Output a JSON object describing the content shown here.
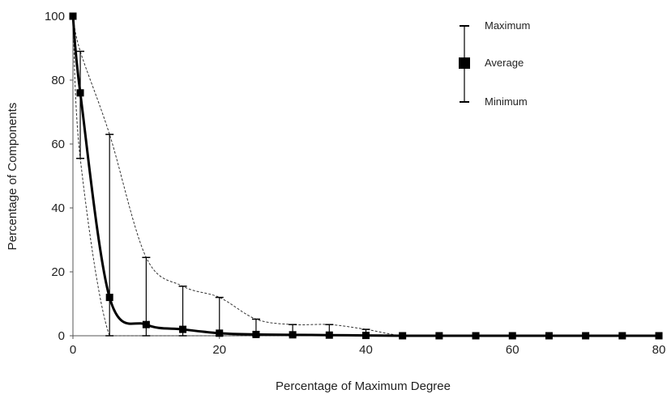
{
  "chart_data": {
    "type": "line",
    "title": "",
    "xlabel": "Percentage of Maximum Degree",
    "ylabel": "Percentage of Components",
    "xlim": [
      0,
      80
    ],
    "ylim": [
      0,
      100
    ],
    "xticks": [
      0,
      20,
      40,
      60,
      80
    ],
    "yticks": [
      0,
      20,
      40,
      60,
      80,
      100
    ],
    "grid": false,
    "legend": {
      "placement": "top-right",
      "entries": [
        "Maximum",
        "Average",
        "Minimum"
      ]
    },
    "series": [
      {
        "name": "Average",
        "x": [
          0,
          1,
          5,
          10,
          15,
          20,
          25,
          30,
          35,
          40,
          45,
          50,
          55,
          60,
          65,
          70,
          75,
          80
        ],
        "values": [
          100,
          76,
          12,
          3.5,
          2,
          0.8,
          0.4,
          0.3,
          0.2,
          0.1,
          0,
          0,
          0,
          0,
          0,
          0,
          0,
          0
        ]
      },
      {
        "name": "Maximum",
        "x": [
          0,
          1,
          5,
          10,
          15,
          20,
          25,
          30,
          35,
          40,
          45,
          50,
          55,
          60,
          65,
          70,
          75,
          80
        ],
        "values": [
          100,
          89,
          63,
          24.5,
          15.5,
          12,
          5.2,
          3.5,
          3.5,
          2,
          0,
          0,
          0,
          0,
          0,
          0,
          0,
          0
        ]
      },
      {
        "name": "Minimum",
        "x": [
          0,
          1,
          5,
          10,
          15,
          20,
          25,
          30,
          35,
          40,
          45,
          50,
          55,
          60,
          65,
          70,
          75,
          80
        ],
        "values": [
          100,
          55.5,
          0,
          0,
          0,
          0,
          0,
          0,
          0,
          0,
          0,
          0,
          0,
          0,
          0,
          0,
          0,
          0
        ]
      }
    ]
  }
}
